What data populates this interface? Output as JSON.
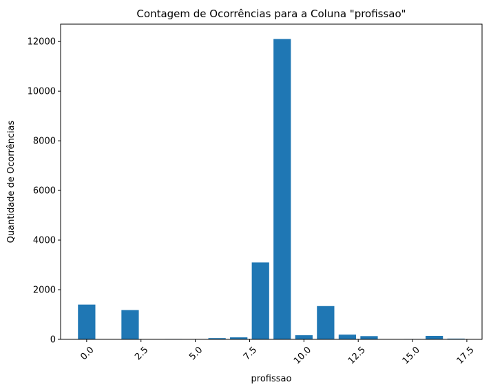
{
  "chart_data": {
    "type": "bar",
    "title": "Contagem de Ocorrências para a Coluna \"profissao\"",
    "xlabel": "profissao",
    "ylabel": "Quantidade de Ocorrências",
    "xlim": [
      -1.2,
      18.2
    ],
    "ylim": [
      0,
      12700
    ],
    "xticks": [
      0.0,
      2.5,
      5.0,
      7.5,
      10.0,
      12.5,
      15.0,
      17.5
    ],
    "xtick_labels": [
      "0.0",
      "2.5",
      "5.0",
      "7.5",
      "10.0",
      "12.5",
      "15.0",
      "17.5"
    ],
    "yticks": [
      0,
      2000,
      4000,
      6000,
      8000,
      10000,
      12000
    ],
    "ytick_labels": [
      "0",
      "2000",
      "4000",
      "6000",
      "8000",
      "10000",
      "12000"
    ],
    "bar_width": 0.8,
    "x": [
      0,
      2,
      4,
      6,
      7,
      8,
      9,
      10,
      11,
      12,
      13,
      15,
      16,
      17
    ],
    "values": [
      1400,
      1180,
      15,
      50,
      80,
      3100,
      12100,
      165,
      1340,
      190,
      130,
      15,
      140,
      30
    ],
    "bar_color": "#1f77b4",
    "grid": false,
    "legend": "none"
  }
}
